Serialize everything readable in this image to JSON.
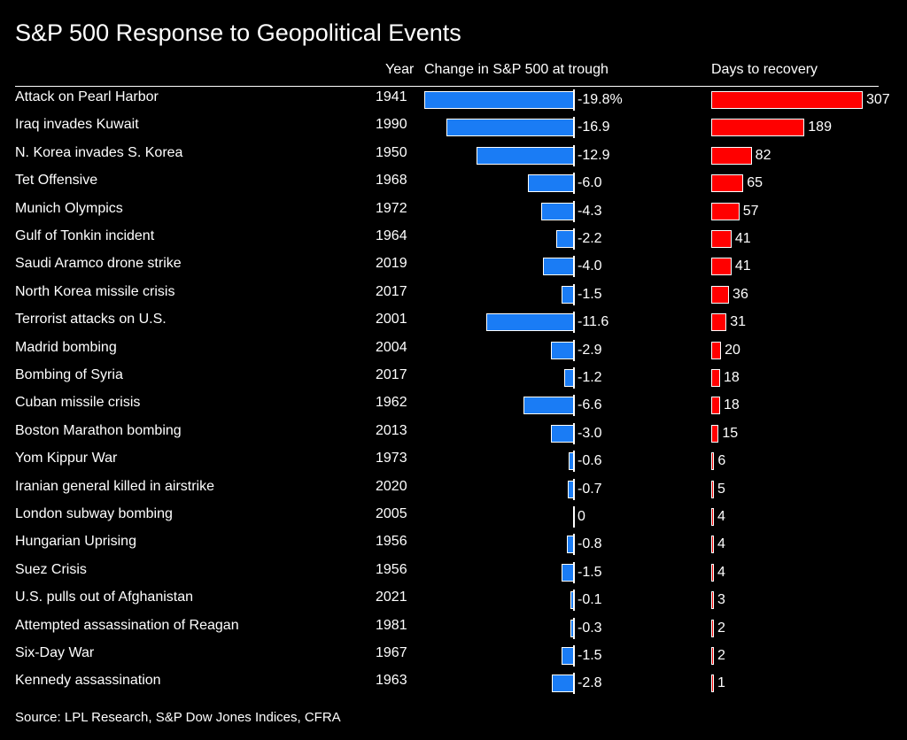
{
  "chart_data": {
    "type": "bar",
    "title": "S&P 500 Response to Geopolitical Events",
    "columns": {
      "year": "Year",
      "change": "Change in S&P 500 at trough",
      "days": "Days to recovery"
    },
    "source": "Source: LPL Research, S&P Dow Jones Indices, CFRA",
    "change_max_abs": 19.8,
    "days_max": 307,
    "series": [
      {
        "name": "Change in S&P 500 at trough",
        "unit": "%",
        "color": "#1a7cf5"
      },
      {
        "name": "Days to recovery",
        "unit": "days",
        "color": "#ff0000"
      }
    ],
    "rows": [
      {
        "event": "Attack on Pearl Harbor",
        "year": "1941",
        "change": -19.8,
        "change_label": "-19.8%",
        "days": 307,
        "days_label": "307"
      },
      {
        "event": "Iraq invades Kuwait",
        "year": "1990",
        "change": -16.9,
        "change_label": "-16.9",
        "days": 189,
        "days_label": "189"
      },
      {
        "event": "N. Korea invades S. Korea",
        "year": "1950",
        "change": -12.9,
        "change_label": "-12.9",
        "days": 82,
        "days_label": "82"
      },
      {
        "event": "Tet Offensive",
        "year": "1968",
        "change": -6.0,
        "change_label": "-6.0",
        "days": 65,
        "days_label": "65"
      },
      {
        "event": "Munich Olympics",
        "year": "1972",
        "change": -4.3,
        "change_label": "-4.3",
        "days": 57,
        "days_label": "57"
      },
      {
        "event": "Gulf of Tonkin incident",
        "year": "1964",
        "change": -2.2,
        "change_label": "-2.2",
        "days": 41,
        "days_label": "41"
      },
      {
        "event": "Saudi Aramco drone strike",
        "year": "2019",
        "change": -4.0,
        "change_label": "-4.0",
        "days": 41,
        "days_label": "41"
      },
      {
        "event": "North Korea missile crisis",
        "year": "2017",
        "change": -1.5,
        "change_label": "-1.5",
        "days": 36,
        "days_label": "36"
      },
      {
        "event": "Terrorist attacks on U.S.",
        "year": "2001",
        "change": -11.6,
        "change_label": "-11.6",
        "days": 31,
        "days_label": "31"
      },
      {
        "event": "Madrid bombing",
        "year": "2004",
        "change": -2.9,
        "change_label": "-2.9",
        "days": 20,
        "days_label": "20"
      },
      {
        "event": "Bombing of Syria",
        "year": "2017",
        "change": -1.2,
        "change_label": "-1.2",
        "days": 18,
        "days_label": "18"
      },
      {
        "event": "Cuban missile crisis",
        "year": "1962",
        "change": -6.6,
        "change_label": "-6.6",
        "days": 18,
        "days_label": "18"
      },
      {
        "event": "Boston Marathon bombing",
        "year": "2013",
        "change": -3.0,
        "change_label": "-3.0",
        "days": 15,
        "days_label": "15"
      },
      {
        "event": "Yom Kippur War",
        "year": "1973",
        "change": -0.6,
        "change_label": "-0.6",
        "days": 6,
        "days_label": "6"
      },
      {
        "event": "Iranian general killed in airstrike",
        "year": "2020",
        "change": -0.7,
        "change_label": "-0.7",
        "days": 5,
        "days_label": "5"
      },
      {
        "event": "London subway bombing",
        "year": "2005",
        "change": 0,
        "change_label": "0",
        "days": 4,
        "days_label": "4"
      },
      {
        "event": "Hungarian Uprising",
        "year": "1956",
        "change": -0.8,
        "change_label": "-0.8",
        "days": 4,
        "days_label": "4"
      },
      {
        "event": "Suez Crisis",
        "year": "1956",
        "change": -1.5,
        "change_label": "-1.5",
        "days": 4,
        "days_label": "4"
      },
      {
        "event": "U.S. pulls out of Afghanistan",
        "year": "2021",
        "change": -0.1,
        "change_label": "-0.1",
        "days": 3,
        "days_label": "3"
      },
      {
        "event": "Attempted assassination of Reagan",
        "year": "1981",
        "change": -0.3,
        "change_label": "-0.3",
        "days": 2,
        "days_label": "2"
      },
      {
        "event": "Six-Day War",
        "year": "1967",
        "change": -1.5,
        "change_label": "-1.5",
        "days": 2,
        "days_label": "2"
      },
      {
        "event": "Kennedy assassination",
        "year": "1963",
        "change": -2.8,
        "change_label": "-2.8",
        "days": 1,
        "days_label": "1"
      }
    ]
  }
}
